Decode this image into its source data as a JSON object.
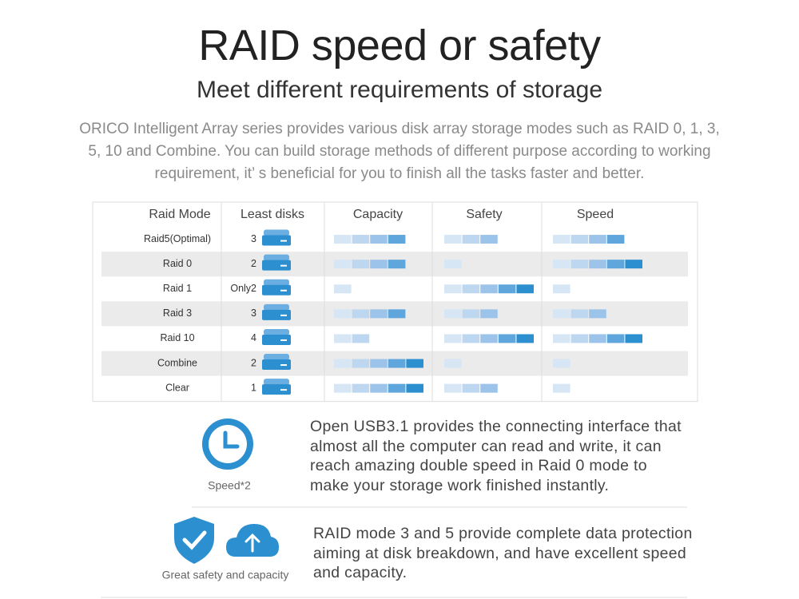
{
  "header": {
    "title": "RAID speed or safety",
    "subtitle": "Meet different requirements of storage",
    "description": "ORICO Intelligent Array series provides various disk array storage modes such as RAID 0, 1, 3, 5, 10 and Combine. You can build storage methods of different purpose according to working requirement, it’ s beneficial for you to finish all the tasks faster and better."
  },
  "table": {
    "columns": [
      "Raid Mode",
      "Least disks",
      "Capacity",
      "Safety",
      "Speed"
    ],
    "rows": [
      {
        "mode": "Raid5(Optimal)",
        "disks": 3,
        "capacity": 4,
        "safety": 3,
        "speed": 4
      },
      {
        "mode": "Raid 0",
        "disks": 2,
        "capacity": 4,
        "safety": 1,
        "speed": 5
      },
      {
        "mode": "Raid 1",
        "disks": "Only2",
        "capacity": 1,
        "safety": 5,
        "speed": 1
      },
      {
        "mode": "Raid 3",
        "disks": 3,
        "capacity": 4,
        "safety": 3,
        "speed": 3
      },
      {
        "mode": "Raid 10",
        "disks": 4,
        "capacity": 2,
        "safety": 5,
        "speed": 5
      },
      {
        "mode": "Combine",
        "disks": 2,
        "capacity": 5,
        "safety": 1,
        "speed": 1
      },
      {
        "mode": "Clear",
        "disks": 1,
        "capacity": 5,
        "safety": 3,
        "speed": 1
      }
    ]
  },
  "features": [
    {
      "label": "Speed*2",
      "text": "Open USB3.1 provides the connecting interface that almost all the computer can read and write, it can reach amazing double speed in Raid 0 mode to make your storage work finished instantly."
    },
    {
      "label": "Great safety and capacity",
      "text": "RAID mode 3 and 5 provide complete data protection aiming at disk breakdown, and have excellent speed and capacity."
    }
  ]
}
